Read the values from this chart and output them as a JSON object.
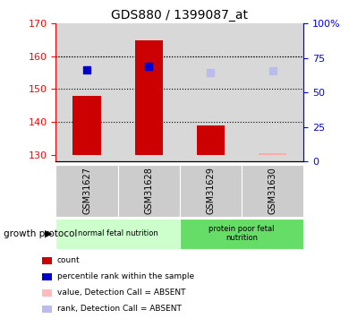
{
  "title": "GDS880 / 1399087_at",
  "samples": [
    "GSM31627",
    "GSM31628",
    "GSM31629",
    "GSM31630"
  ],
  "bar_values": [
    148.0,
    165.0,
    139.0,
    130.5
  ],
  "bar_colors": [
    "#cc0000",
    "#cc0000",
    "#cc0000",
    "#ffaaaa"
  ],
  "marker_values": [
    156.0,
    157.0,
    155.0,
    155.5
  ],
  "marker_colors": [
    "#0000cc",
    "#0000cc",
    "#bbbbee",
    "#bbbbee"
  ],
  "ylim_left": [
    128,
    170
  ],
  "ylim_right": [
    0,
    100
  ],
  "yticks_left": [
    130,
    140,
    150,
    160,
    170
  ],
  "yticks_right": [
    0,
    25,
    50,
    75,
    100
  ],
  "ytick_labels_right": [
    "0",
    "25",
    "50",
    "75",
    "100%"
  ],
  "groups": [
    {
      "label": "normal fetal nutrition",
      "samples": [
        0,
        1
      ],
      "color": "#ccffcc"
    },
    {
      "label": "protein poor fetal\nnutrition",
      "samples": [
        2,
        3
      ],
      "color": "#66dd66"
    }
  ],
  "group_label": "growth protocol",
  "legend": [
    {
      "label": "count",
      "color": "#cc0000"
    },
    {
      "label": "percentile rank within the sample",
      "color": "#0000cc"
    },
    {
      "label": "value, Detection Call = ABSENT",
      "color": "#ffbbbb"
    },
    {
      "label": "rank, Detection Call = ABSENT",
      "color": "#bbbbee"
    }
  ],
  "bar_width": 0.45,
  "bar_bottom": 130,
  "grid_yticks": [
    140,
    150,
    160
  ],
  "background_color": "#d8d8d8",
  "sample_box_color": "#cccccc"
}
